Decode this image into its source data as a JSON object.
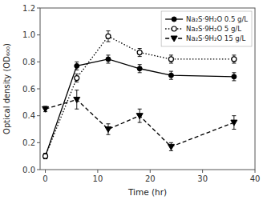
{
  "chart_data": {
    "type": "line",
    "x_label": "Time (hr)",
    "y_label": "Optical density (OD₆₀₀)",
    "series": [
      {
        "name": "Na₂S·9H₂O 0.5 g/L",
        "color": "black",
        "line_style": "solid",
        "marker": "circle",
        "x": [
          0,
          6,
          12,
          18,
          24,
          36
        ],
        "values": [
          0.1,
          0.77,
          0.82,
          0.75,
          0.7,
          0.69
        ],
        "yerr": [
          0.02,
          0.03,
          0.03,
          0.03,
          0.03,
          0.03
        ]
      },
      {
        "name": "Na₂S·9H₂O 5 g/L",
        "color": "black",
        "line_style": "dotted",
        "marker": "open-circle",
        "x": [
          0,
          6,
          12,
          18,
          24,
          36
        ],
        "values": [
          0.1,
          0.68,
          0.99,
          0.87,
          0.82,
          0.82
        ],
        "yerr": [
          0.02,
          0.03,
          0.04,
          0.03,
          0.03,
          0.03
        ]
      },
      {
        "name": "Na₂S·9H₂O 15 g/L",
        "color": "black",
        "line_style": "dashed",
        "marker": "triangle-down",
        "x": [
          0,
          6,
          12,
          18,
          24,
          36
        ],
        "values": [
          0.45,
          0.52,
          0.3,
          0.4,
          0.17,
          0.35
        ],
        "yerr": [
          0.02,
          0.07,
          0.04,
          0.05,
          0.03,
          0.05
        ]
      }
    ],
    "xlim": [
      -1,
      40
    ],
    "ylim": [
      0.0,
      1.2
    ],
    "xticks": [
      0,
      10,
      20,
      30,
      40
    ],
    "yticks": [
      {
        "value": 0.0,
        "label": "0.0"
      },
      0.2,
      0.4,
      0.6,
      0.8,
      {
        "value": 1.0,
        "label": "1.0"
      },
      1.2
    ],
    "grid": false,
    "legend": "upper right"
  }
}
